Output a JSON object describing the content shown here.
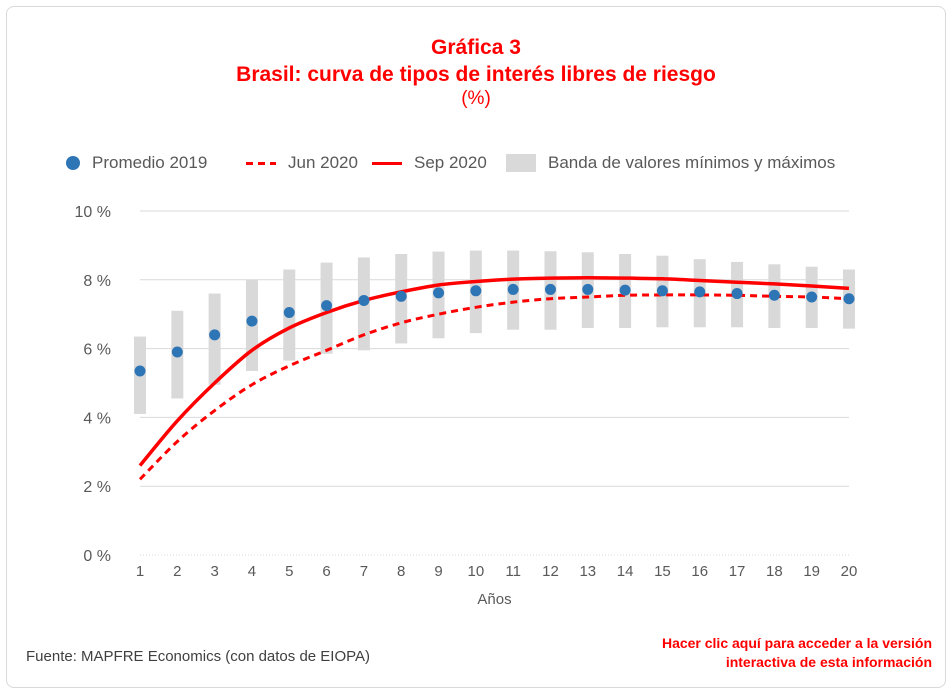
{
  "title": "Gráfica 3",
  "subtitle": "Brasil: curva de tipos de interés libres de riesgo",
  "unit": "(%)",
  "legend": {
    "promedio": "Promedio 2019",
    "jun": "Jun 2020",
    "sep": "Sep 2020",
    "banda": "Banda de valores mínimos y máximos"
  },
  "source": "Fuente: MAPFRE Economics (con datos de EIOPA)",
  "link_line1": "Hacer clic aquí para acceder a la versión",
  "link_line2": "interactiva de esta información",
  "colors": {
    "promedio": "#2e75b6",
    "curves": "#ff0000",
    "band": "#d9d9d9",
    "title": "#ff0000"
  },
  "chart_data": {
    "type": "line",
    "xlabel": "Años",
    "x": [
      1,
      2,
      3,
      4,
      5,
      6,
      7,
      8,
      9,
      10,
      11,
      12,
      13,
      14,
      15,
      16,
      17,
      18,
      19,
      20
    ],
    "y_ticks": [
      "0 %",
      "2 %",
      "4 %",
      "6 %",
      "8 %",
      "10 %"
    ],
    "ylim": [
      0,
      10
    ],
    "grid": true,
    "legend_position": "top",
    "series": [
      {
        "name": "Promedio 2019",
        "kind": "markers",
        "values": [
          5.35,
          5.9,
          6.4,
          6.8,
          7.05,
          7.25,
          7.4,
          7.52,
          7.62,
          7.68,
          7.72,
          7.72,
          7.72,
          7.7,
          7.68,
          7.65,
          7.6,
          7.55,
          7.5,
          7.45
        ]
      },
      {
        "name": "Jun 2020",
        "kind": "dashed-line",
        "values": [
          2.2,
          3.3,
          4.2,
          4.95,
          5.5,
          5.95,
          6.4,
          6.75,
          7.0,
          7.2,
          7.35,
          7.45,
          7.5,
          7.55,
          7.56,
          7.56,
          7.55,
          7.52,
          7.5,
          7.45
        ]
      },
      {
        "name": "Sep 2020",
        "kind": "line",
        "values": [
          2.6,
          3.9,
          5.0,
          5.95,
          6.6,
          7.05,
          7.4,
          7.65,
          7.85,
          7.95,
          8.02,
          8.05,
          8.06,
          8.05,
          8.03,
          7.98,
          7.93,
          7.88,
          7.82,
          7.75
        ]
      },
      {
        "name": "Banda de valores mínimos y máximos",
        "kind": "range-band",
        "low": [
          4.1,
          4.55,
          4.95,
          5.35,
          5.65,
          5.85,
          5.95,
          6.15,
          6.3,
          6.45,
          6.55,
          6.55,
          6.6,
          6.6,
          6.62,
          6.62,
          6.62,
          6.6,
          6.6,
          6.58
        ],
        "high": [
          6.35,
          7.1,
          7.6,
          8.0,
          8.3,
          8.5,
          8.65,
          8.75,
          8.82,
          8.85,
          8.85,
          8.83,
          8.8,
          8.75,
          8.7,
          8.6,
          8.52,
          8.45,
          8.38,
          8.3
        ]
      }
    ]
  }
}
